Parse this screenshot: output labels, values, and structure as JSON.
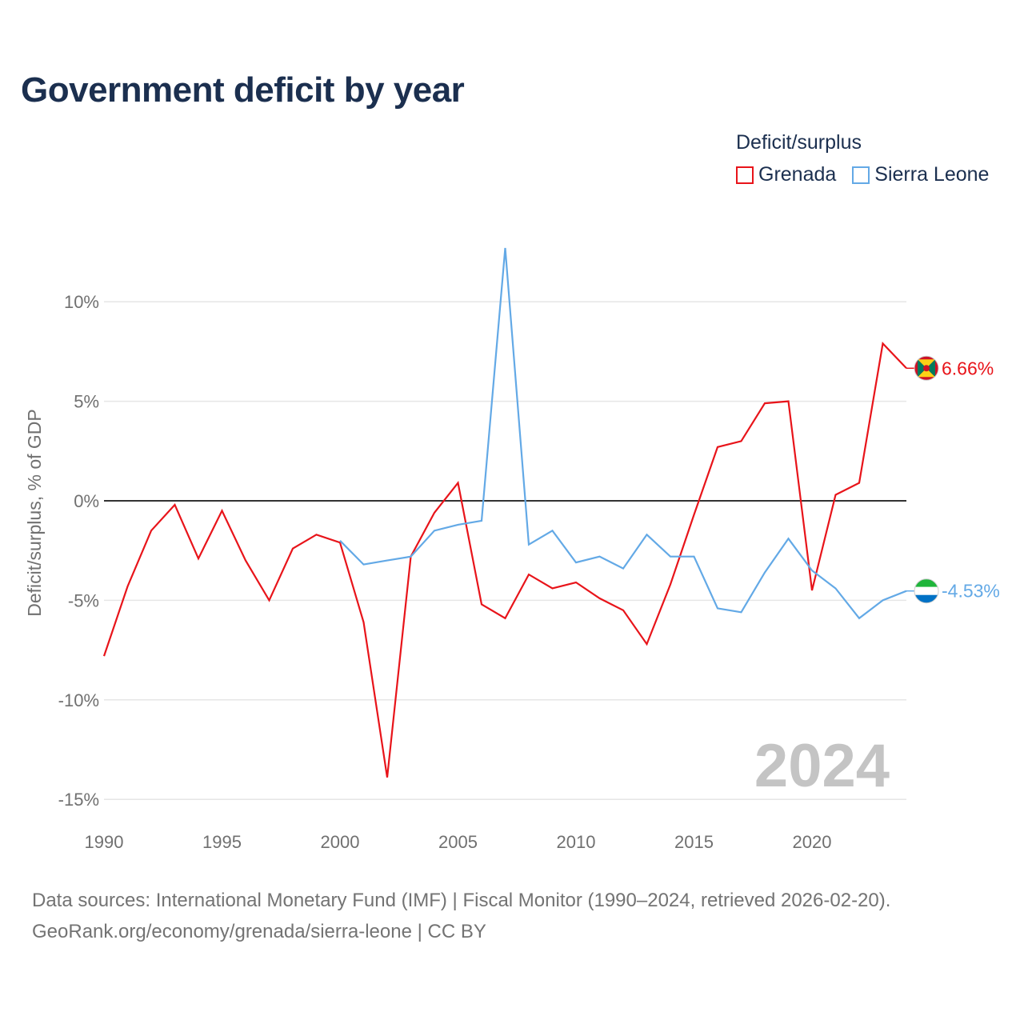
{
  "title": "Government deficit by year",
  "legend": {
    "title": "Deficit/surplus",
    "items": [
      {
        "label": "Grenada",
        "color": "#e8141a"
      },
      {
        "label": "Sierra Leone",
        "color": "#63a9e6"
      }
    ]
  },
  "footer": {
    "line1": "Data sources: International Monetary Fund (IMF) | Fiscal Monitor (1990–2024, retrieved 2026-02-20).",
    "line2": "GeoRank.org/economy/grenada/sierra-leone | CC BY"
  },
  "chart_data": {
    "type": "line",
    "title": "Government deficit by year",
    "xlabel": "",
    "ylabel": "Deficit/surplus, % of GDP",
    "xlim": [
      1990,
      2024
    ],
    "ylim": [
      -15,
      12.5
    ],
    "xticks": [
      1990,
      1995,
      2000,
      2005,
      2010,
      2015,
      2020
    ],
    "xtick_labels": [
      "1990",
      "1995",
      "2000",
      "2005",
      "2010",
      "2015",
      "2020"
    ],
    "yticks": [
      10,
      5,
      0,
      -5,
      -10,
      -15
    ],
    "ytick_labels": [
      "10%",
      "5%",
      "0%",
      "-5%",
      "-10%",
      "-15%"
    ],
    "watermark": "2024",
    "series": [
      {
        "name": "Grenada",
        "color": "#e8141a",
        "end_label": "6.66%",
        "flag": "grenada",
        "x": [
          1990,
          1991,
          1992,
          1993,
          1994,
          1995,
          1996,
          1997,
          1998,
          1999,
          2000,
          2001,
          2002,
          2003,
          2004,
          2005,
          2006,
          2007,
          2008,
          2009,
          2010,
          2011,
          2012,
          2013,
          2014,
          2015,
          2016,
          2017,
          2018,
          2019,
          2020,
          2021,
          2022,
          2023,
          2024
        ],
        "values": [
          -7.8,
          -4.3,
          -1.5,
          -0.2,
          -2.9,
          -0.5,
          -3.0,
          -5.0,
          -2.4,
          -1.7,
          -2.1,
          -6.1,
          -13.9,
          -2.8,
          -0.6,
          0.9,
          -5.2,
          -5.9,
          -3.7,
          -4.4,
          -4.1,
          -4.9,
          -5.5,
          -7.2,
          -4.2,
          -0.7,
          2.7,
          3.0,
          4.9,
          5.0,
          -4.5,
          0.3,
          0.9,
          7.9,
          6.66
        ]
      },
      {
        "name": "Sierra Leone",
        "color": "#63a9e6",
        "end_label": "-4.53%",
        "flag": "sierra-leone",
        "x": [
          2000,
          2001,
          2002,
          2003,
          2004,
          2005,
          2006,
          2007,
          2008,
          2009,
          2010,
          2011,
          2012,
          2013,
          2014,
          2015,
          2016,
          2017,
          2018,
          2019,
          2020,
          2021,
          2022,
          2023,
          2024
        ],
        "values": [
          -2.0,
          -3.2,
          -3.0,
          -2.8,
          -1.5,
          -1.2,
          -1.0,
          12.7,
          -2.2,
          -1.5,
          -3.1,
          -2.8,
          -3.4,
          -1.7,
          -2.8,
          -2.8,
          -5.4,
          -5.6,
          -3.6,
          -1.9,
          -3.5,
          -4.4,
          -5.9,
          -5.0,
          -4.53
        ]
      }
    ]
  }
}
